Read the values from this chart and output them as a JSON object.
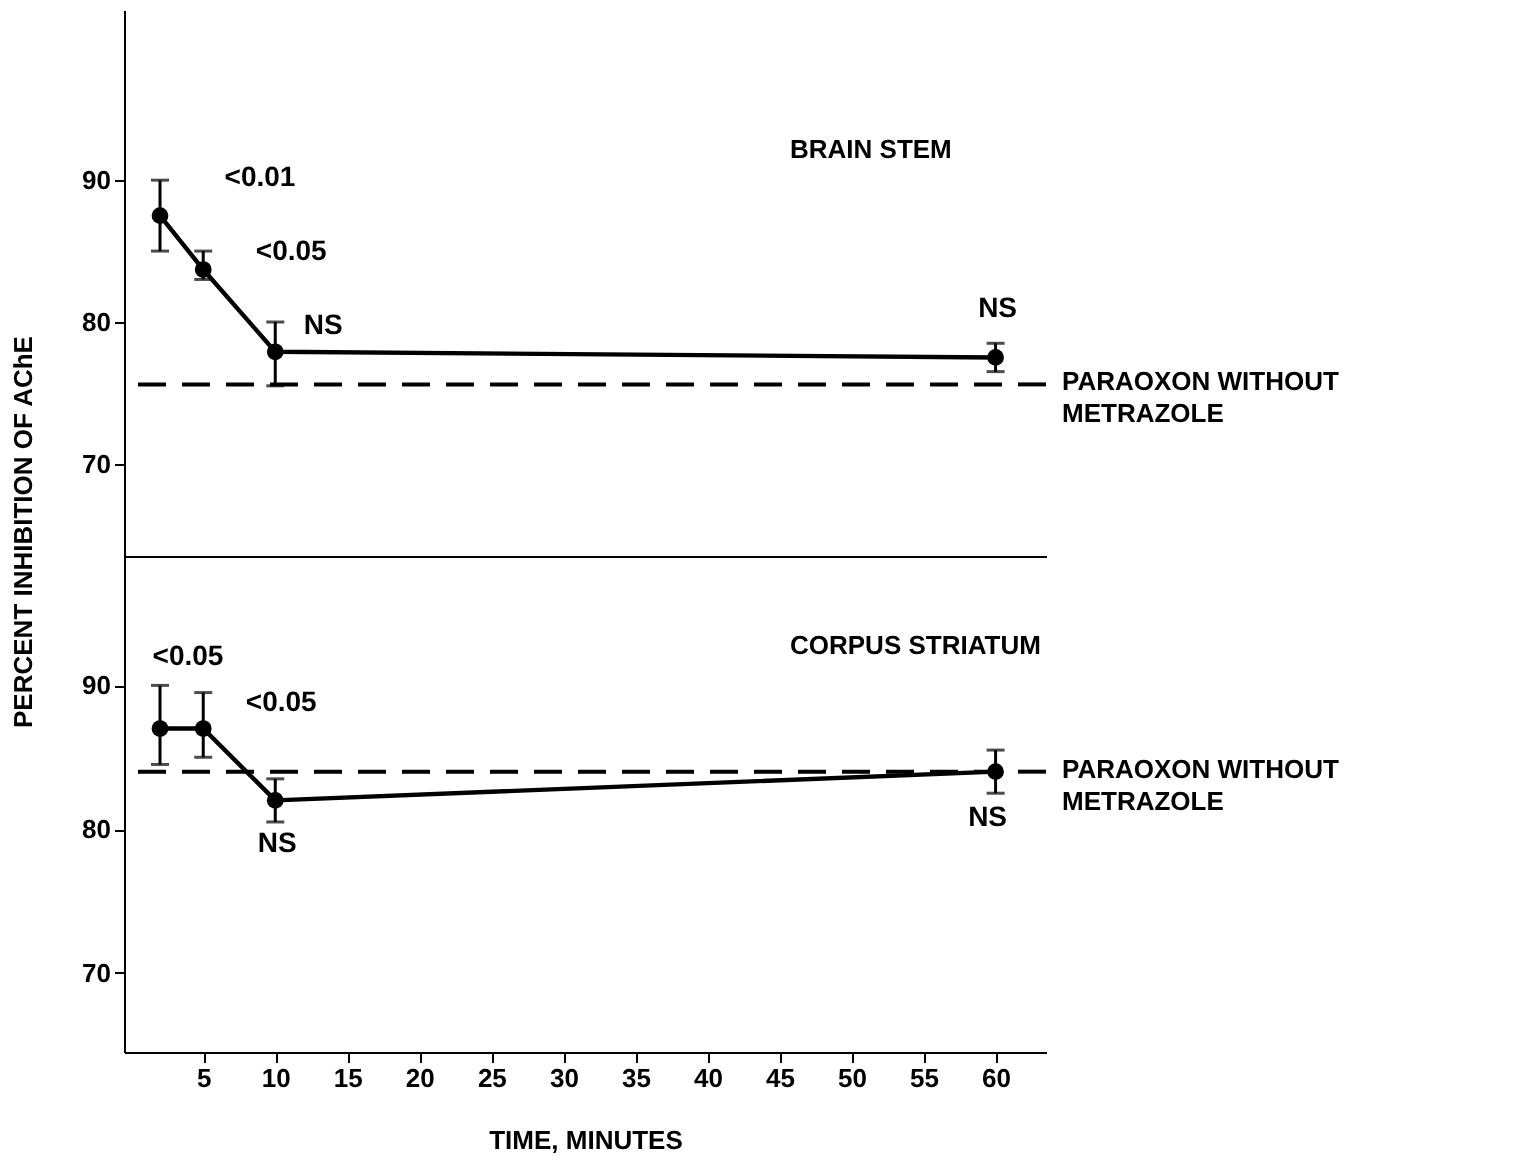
{
  "chart_data": [
    {
      "type": "line",
      "title": "BRAIN STEM",
      "ylabel": "PERCENT INHIBITION OF AChE",
      "x": [
        2,
        5,
        10,
        60
      ],
      "series": [
        {
          "color": "#000000",
          "values": [
            87.5,
            83.7,
            77.9,
            77.5
          ],
          "errors": [
            [
              85,
              90
            ],
            [
              83,
              85
            ],
            [
              75.5,
              80
            ],
            [
              76.5,
              78.5
            ]
          ]
        }
      ],
      "xlim": [
        -0.5,
        63.5
      ],
      "ylim": [
        63.5,
        102
      ],
      "yticks": [
        70,
        80,
        90
      ],
      "tick_labels": "y",
      "marker": "circle",
      "line_style": "solid",
      "grid": false,
      "ref_lines": [
        {
          "axis": "y",
          "value": 75.6,
          "label": "PARAOXON WITHOUT METRAZOLE",
          "color": "#000000",
          "line_style": "dashed"
        }
      ],
      "annotations": [
        {
          "text": "<0.01",
          "x": 2,
          "y": 87.5
        },
        {
          "text": "<0.05",
          "x": 5,
          "y": 83.7
        },
        {
          "text": "NS",
          "x": 10,
          "y": 77.9
        },
        {
          "text": "NS",
          "x": 60,
          "y": 77.5
        }
      ]
    },
    {
      "type": "line",
      "title": "CORPUS STRIATUM",
      "xlabel": "TIME, MINUTES",
      "x": [
        2,
        5,
        10,
        60
      ],
      "series": [
        {
          "color": "#000000",
          "values": [
            87,
            87,
            82,
            84
          ],
          "errors": [
            [
              84.5,
              90
            ],
            [
              85,
              89.5
            ],
            [
              80.5,
              83.5
            ],
            [
              82.5,
              85.5
            ]
          ]
        }
      ],
      "xlim": [
        -0.5,
        63.5
      ],
      "ylim": [
        64.5,
        99
      ],
      "xticks": [
        5,
        10,
        15,
        20,
        25,
        30,
        35,
        40,
        45,
        50,
        55,
        60
      ],
      "yticks": [
        70,
        80,
        90
      ],
      "marker": "circle",
      "line_style": "solid",
      "grid": false,
      "ref_lines": [
        {
          "axis": "y",
          "value": 84,
          "label": "PARAOXON WITHOUT METRAZOLE",
          "color": "#000000",
          "line_style": "dashed"
        }
      ],
      "annotations": [
        {
          "text": "<0.05",
          "x": 2,
          "y": 87
        },
        {
          "text": "<0.05",
          "x": 5,
          "y": 87
        },
        {
          "text": "NS",
          "x": 10,
          "y": 82
        },
        {
          "text": "NS",
          "x": 60,
          "y": 84
        }
      ]
    }
  ]
}
